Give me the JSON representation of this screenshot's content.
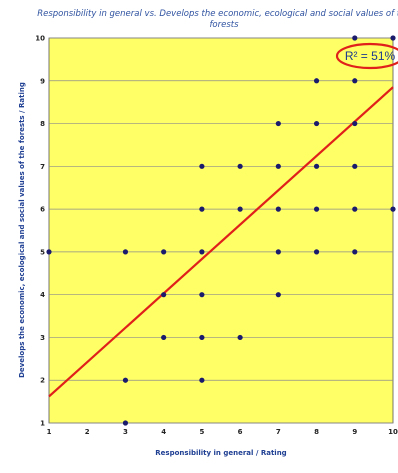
{
  "chart_data": {
    "type": "scatter",
    "title_line1": "Responsibility in general vs. Develops the economic, ecological and social values of the",
    "title_line2": "forests",
    "xlabel": "Responsibility in general / Rating",
    "ylabel": "Develops the economic, ecological and social values of the forests / Rating",
    "xlim": [
      1,
      10
    ],
    "ylim": [
      1,
      10
    ],
    "xticks": [
      "1",
      "2",
      "3",
      "4",
      "5",
      "6",
      "7",
      "8",
      "9",
      "10"
    ],
    "yticks": [
      "1",
      "2",
      "3",
      "4",
      "5",
      "6",
      "7",
      "8",
      "9",
      "10"
    ],
    "grid": true,
    "points": [
      [
        3,
        1
      ],
      [
        3,
        2
      ],
      [
        5,
        2
      ],
      [
        4,
        3
      ],
      [
        5,
        3
      ],
      [
        6,
        3
      ],
      [
        4,
        4
      ],
      [
        5,
        4
      ],
      [
        7,
        4
      ],
      [
        1,
        5
      ],
      [
        3,
        5
      ],
      [
        4,
        5
      ],
      [
        5,
        5
      ],
      [
        7,
        5
      ],
      [
        8,
        5
      ],
      [
        9,
        5
      ],
      [
        5,
        6
      ],
      [
        6,
        6
      ],
      [
        7,
        6
      ],
      [
        8,
        6
      ],
      [
        9,
        6
      ],
      [
        10,
        6
      ],
      [
        5,
        7
      ],
      [
        6,
        7
      ],
      [
        7,
        7
      ],
      [
        8,
        7
      ],
      [
        9,
        7
      ],
      [
        7,
        8
      ],
      [
        8,
        8
      ],
      [
        9,
        8
      ],
      [
        8,
        9
      ],
      [
        9,
        9
      ],
      [
        9,
        10
      ],
      [
        10,
        10
      ]
    ],
    "trendline": {
      "x": [
        1,
        10
      ],
      "y": [
        1.62,
        8.85
      ]
    },
    "r2_label": "R² = 51%",
    "colors": {
      "plot_bg": "#ffff66",
      "grid": "#8c8c8c",
      "points": "#1b1b6e",
      "trend": "#e0201b",
      "highlight": "#e0201b"
    }
  }
}
